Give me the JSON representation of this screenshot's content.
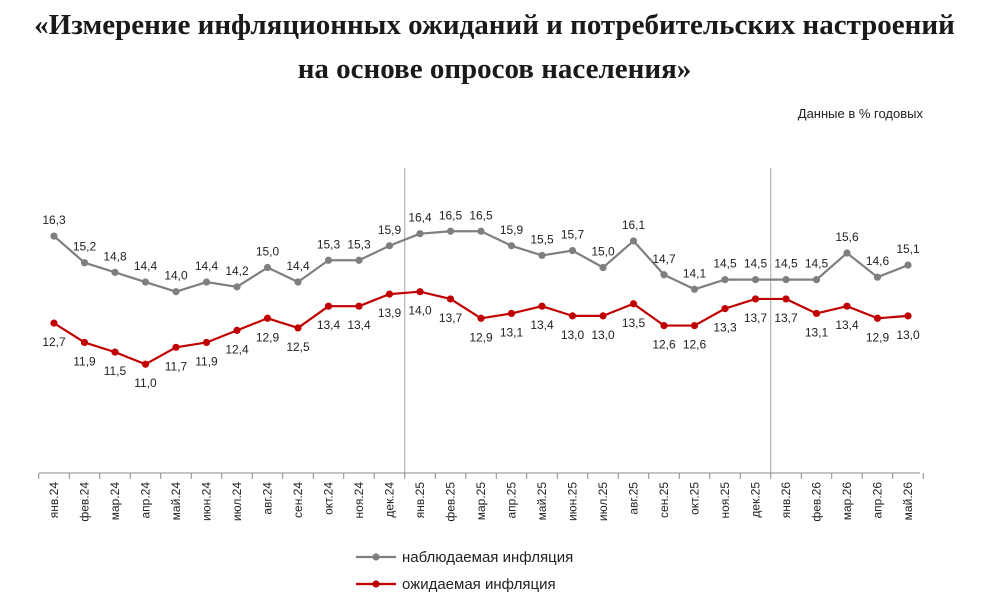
{
  "title_line1": "«Измерение инфляционных ожиданий и потребительских настроений",
  "title_line2": "на основе опросов населения»",
  "subtitle": "Данные в % годовых",
  "colors": {
    "observed": "#7f7f7f",
    "expected": "#c00000",
    "axis": "#888888",
    "divider": "#a6a6a6"
  },
  "chart_data": {
    "type": "line",
    "title": "«Измерение инфляционных ожиданий и потребительских настроений на основе опросов населения»",
    "subtitle": "Данные в % годовых",
    "x": [
      "янв.24",
      "фев.24",
      "мар.24",
      "апр.24",
      "май.24",
      "июн.24",
      "июл.24",
      "авг.24",
      "сен.24",
      "окт.24",
      "ноя.24",
      "дек.24",
      "янв.25",
      "фев.25",
      "мар.25",
      "апр.25",
      "май.25",
      "июн.25",
      "июл.25",
      "авг.25",
      "сен.25",
      "окт.25",
      "ноя.25",
      "дек.25",
      "янв.26",
      "фев.26",
      "мар.26",
      "апр.26",
      "май.26"
    ],
    "series": [
      {
        "name": "наблюдаемая инфляция",
        "values": [
          16.3,
          15.2,
          14.8,
          14.4,
          14.0,
          14.4,
          14.2,
          15.0,
          14.4,
          15.3,
          15.3,
          15.9,
          16.4,
          16.5,
          16.5,
          15.9,
          15.5,
          15.7,
          15.0,
          16.1,
          14.7,
          14.1,
          14.5,
          14.5,
          14.5,
          14.5,
          15.6,
          14.6,
          15.1
        ],
        "labels": [
          "16,3",
          "15,2",
          "14,8",
          "14,4",
          "14,0",
          "14,4",
          "14,2",
          "15,0",
          "14,4",
          "15,3",
          "15,3",
          "15,9",
          "16,4",
          "16,5",
          "16,5",
          "15,9",
          "15,5",
          "15,7",
          "15,0",
          "16,1",
          "14,7",
          "14,1",
          "14,5",
          "14,5",
          "14,5",
          "14,5",
          "15,6",
          "14,6",
          "15,1"
        ]
      },
      {
        "name": "ожидаемая инфляция",
        "values": [
          12.7,
          11.9,
          11.5,
          11.0,
          11.7,
          11.9,
          12.4,
          12.9,
          12.5,
          13.4,
          13.4,
          13.9,
          14.0,
          13.7,
          12.9,
          13.1,
          13.4,
          13.0,
          13.0,
          13.5,
          12.6,
          12.6,
          13.3,
          13.7,
          13.7,
          13.1,
          13.4,
          12.9,
          13.0
        ],
        "labels": [
          "12,7",
          "11,9",
          "11,5",
          "11,0",
          "11,7",
          "11,9",
          "12,4",
          "12,9",
          "12,5",
          "13,4",
          "13,4",
          "13,9",
          "14,0",
          "13,7",
          "12,9",
          "13,1",
          "13,4",
          "13,0",
          "13,0",
          "13,5",
          "12,6",
          "12,6",
          "13,3",
          "13,7",
          "13,7",
          "13,1",
          "13,4",
          "12,9",
          "13,0"
        ]
      }
    ],
    "ylim": [
      6.5,
      18.0
    ],
    "grid": false,
    "year_dividers_after": [
      "дек.24",
      "дек.25"
    ],
    "legend": "bottom-center"
  }
}
